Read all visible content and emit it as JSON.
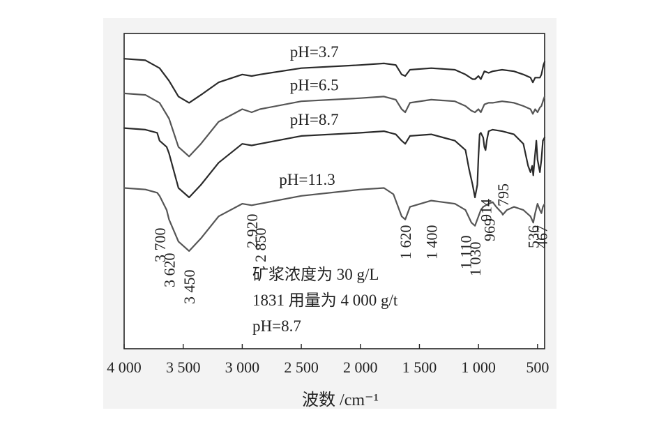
{
  "chart_data": {
    "type": "line",
    "xlabel": "波数 /cm⁻¹",
    "ylabel": "",
    "xlim": [
      4000,
      440
    ],
    "ylim": [
      0,
      100
    ],
    "reversed_x": true,
    "grid": false,
    "xticks": [
      4000,
      3500,
      3000,
      2500,
      2000,
      1500,
      1000,
      500
    ],
    "xtick_labels": [
      "4 000",
      "3 500",
      "3 000",
      "2 500",
      "2 000",
      "1 500",
      "1 000",
      "500"
    ],
    "series": [
      {
        "name": "pH=3.7",
        "color": "#2a2a2a",
        "points": [
          [
            4000,
            92
          ],
          [
            3820,
            91.5
          ],
          [
            3700,
            89
          ],
          [
            3620,
            85
          ],
          [
            3540,
            80
          ],
          [
            3450,
            78
          ],
          [
            3350,
            80.5
          ],
          [
            3200,
            84.5
          ],
          [
            3000,
            87
          ],
          [
            2920,
            86.5
          ],
          [
            2850,
            87
          ],
          [
            2500,
            89
          ],
          [
            2000,
            90
          ],
          [
            1800,
            90.5
          ],
          [
            1700,
            90
          ],
          [
            1650,
            87
          ],
          [
            1620,
            86.5
          ],
          [
            1580,
            88.5
          ],
          [
            1400,
            89
          ],
          [
            1200,
            88.5
          ],
          [
            1110,
            87
          ],
          [
            1050,
            85.5
          ],
          [
            1030,
            85.5
          ],
          [
            1000,
            86.5
          ],
          [
            980,
            85.5
          ],
          [
            950,
            88
          ],
          [
            914,
            87.5
          ],
          [
            880,
            88
          ],
          [
            800,
            88.5
          ],
          [
            700,
            88
          ],
          [
            620,
            87
          ],
          [
            560,
            86
          ],
          [
            540,
            84.5
          ],
          [
            520,
            86
          ],
          [
            480,
            86
          ],
          [
            467,
            87
          ],
          [
            450,
            90
          ],
          [
            440,
            91
          ]
        ]
      },
      {
        "name": "pH=6.5",
        "color": "#555555",
        "points": [
          [
            4000,
            81
          ],
          [
            3820,
            80.5
          ],
          [
            3700,
            78
          ],
          [
            3620,
            73
          ],
          [
            3540,
            64
          ],
          [
            3450,
            61
          ],
          [
            3350,
            65
          ],
          [
            3200,
            72
          ],
          [
            3000,
            76
          ],
          [
            2920,
            75
          ],
          [
            2850,
            76
          ],
          [
            2500,
            78.5
          ],
          [
            2000,
            79.5
          ],
          [
            1800,
            80
          ],
          [
            1700,
            79
          ],
          [
            1650,
            76
          ],
          [
            1620,
            75
          ],
          [
            1580,
            78
          ],
          [
            1400,
            79
          ],
          [
            1200,
            78.5
          ],
          [
            1110,
            77
          ],
          [
            1060,
            75.5
          ],
          [
            1030,
            75
          ],
          [
            1000,
            76
          ],
          [
            980,
            75
          ],
          [
            950,
            77.5
          ],
          [
            914,
            78
          ],
          [
            880,
            78
          ],
          [
            800,
            78.5
          ],
          [
            700,
            78
          ],
          [
            620,
            77
          ],
          [
            560,
            76
          ],
          [
            540,
            74.5
          ],
          [
            520,
            76
          ],
          [
            500,
            75
          ],
          [
            480,
            76.5
          ],
          [
            467,
            77
          ],
          [
            450,
            79
          ],
          [
            440,
            80
          ]
        ]
      },
      {
        "name": "pH=8.7",
        "color": "#2a2a2a",
        "points": [
          [
            4000,
            70
          ],
          [
            3820,
            69.5
          ],
          [
            3720,
            68.5
          ],
          [
            3700,
            66
          ],
          [
            3640,
            64
          ],
          [
            3620,
            62
          ],
          [
            3540,
            51
          ],
          [
            3450,
            48
          ],
          [
            3350,
            52
          ],
          [
            3200,
            59
          ],
          [
            3000,
            65
          ],
          [
            2920,
            64.5
          ],
          [
            2850,
            65
          ],
          [
            2500,
            67.5
          ],
          [
            2000,
            68.5
          ],
          [
            1800,
            69
          ],
          [
            1700,
            68
          ],
          [
            1650,
            66
          ],
          [
            1620,
            65
          ],
          [
            1580,
            67.5
          ],
          [
            1400,
            68
          ],
          [
            1200,
            66
          ],
          [
            1110,
            63
          ],
          [
            1080,
            57
          ],
          [
            1050,
            52
          ],
          [
            1030,
            48
          ],
          [
            1010,
            52
          ],
          [
            1000,
            61
          ],
          [
            990,
            68
          ],
          [
            980,
            68.5
          ],
          [
            960,
            67
          ],
          [
            950,
            64
          ],
          [
            940,
            63
          ],
          [
            930,
            66
          ],
          [
            914,
            69
          ],
          [
            880,
            69.5
          ],
          [
            800,
            69
          ],
          [
            700,
            68
          ],
          [
            620,
            65
          ],
          [
            580,
            58
          ],
          [
            560,
            56
          ],
          [
            545,
            58
          ],
          [
            536,
            55
          ],
          [
            525,
            60
          ],
          [
            510,
            66
          ],
          [
            500,
            60
          ],
          [
            480,
            56
          ],
          [
            467,
            60
          ],
          [
            455,
            66
          ],
          [
            440,
            67
          ]
        ]
      },
      {
        "name": "pH=11.3",
        "color": "#555555",
        "points": [
          [
            4000,
            51
          ],
          [
            3820,
            50.5
          ],
          [
            3720,
            49.5
          ],
          [
            3700,
            48.5
          ],
          [
            3640,
            44
          ],
          [
            3620,
            41
          ],
          [
            3540,
            34
          ],
          [
            3450,
            31
          ],
          [
            3350,
            35
          ],
          [
            3200,
            42
          ],
          [
            3000,
            46
          ],
          [
            2920,
            45.5
          ],
          [
            2850,
            46
          ],
          [
            2500,
            48.5
          ],
          [
            2000,
            50.5
          ],
          [
            1800,
            51
          ],
          [
            1720,
            49
          ],
          [
            1650,
            42
          ],
          [
            1620,
            41
          ],
          [
            1580,
            45
          ],
          [
            1400,
            47
          ],
          [
            1200,
            46
          ],
          [
            1110,
            44
          ],
          [
            1060,
            40
          ],
          [
            1030,
            39
          ],
          [
            1000,
            42
          ],
          [
            980,
            44
          ],
          [
            960,
            45
          ],
          [
            914,
            46
          ],
          [
            880,
            46.5
          ],
          [
            850,
            45
          ],
          [
            800,
            43
          ],
          [
            795,
            42.5
          ],
          [
            760,
            44
          ],
          [
            700,
            45
          ],
          [
            620,
            44
          ],
          [
            560,
            42
          ],
          [
            536,
            40
          ],
          [
            520,
            43
          ],
          [
            500,
            46
          ],
          [
            480,
            44
          ],
          [
            467,
            43
          ],
          [
            455,
            45
          ],
          [
            440,
            46
          ]
        ]
      }
    ],
    "annotations": {
      "series_labels": [
        "pH=3.7",
        "pH=6.5",
        "pH=8.7",
        "pH=11.3"
      ],
      "peaks": [
        {
          "text": "3 700",
          "x": 3700
        },
        {
          "text": "3 620",
          "x": 3620
        },
        {
          "text": "3 450",
          "x": 3450
        },
        {
          "text": "2 920",
          "x": 2920
        },
        {
          "text": "2 850",
          "x": 2850
        },
        {
          "text": "1 620",
          "x": 1620
        },
        {
          "text": "1 400",
          "x": 1400
        },
        {
          "text": "1 110",
          "x": 1110
        },
        {
          "text": "1 030",
          "x": 1030
        },
        {
          "text": "914",
          "x": 914
        },
        {
          "text": "795",
          "x": 795
        },
        {
          "text": "969",
          "x": 969
        },
        {
          "text": "536",
          "x": 536
        },
        {
          "text": "467",
          "x": 467
        }
      ],
      "notes": [
        "矿浆浓度为 30 g/L",
        "1831 用量为 4 000 g/t",
        "pH=8.7"
      ]
    }
  }
}
